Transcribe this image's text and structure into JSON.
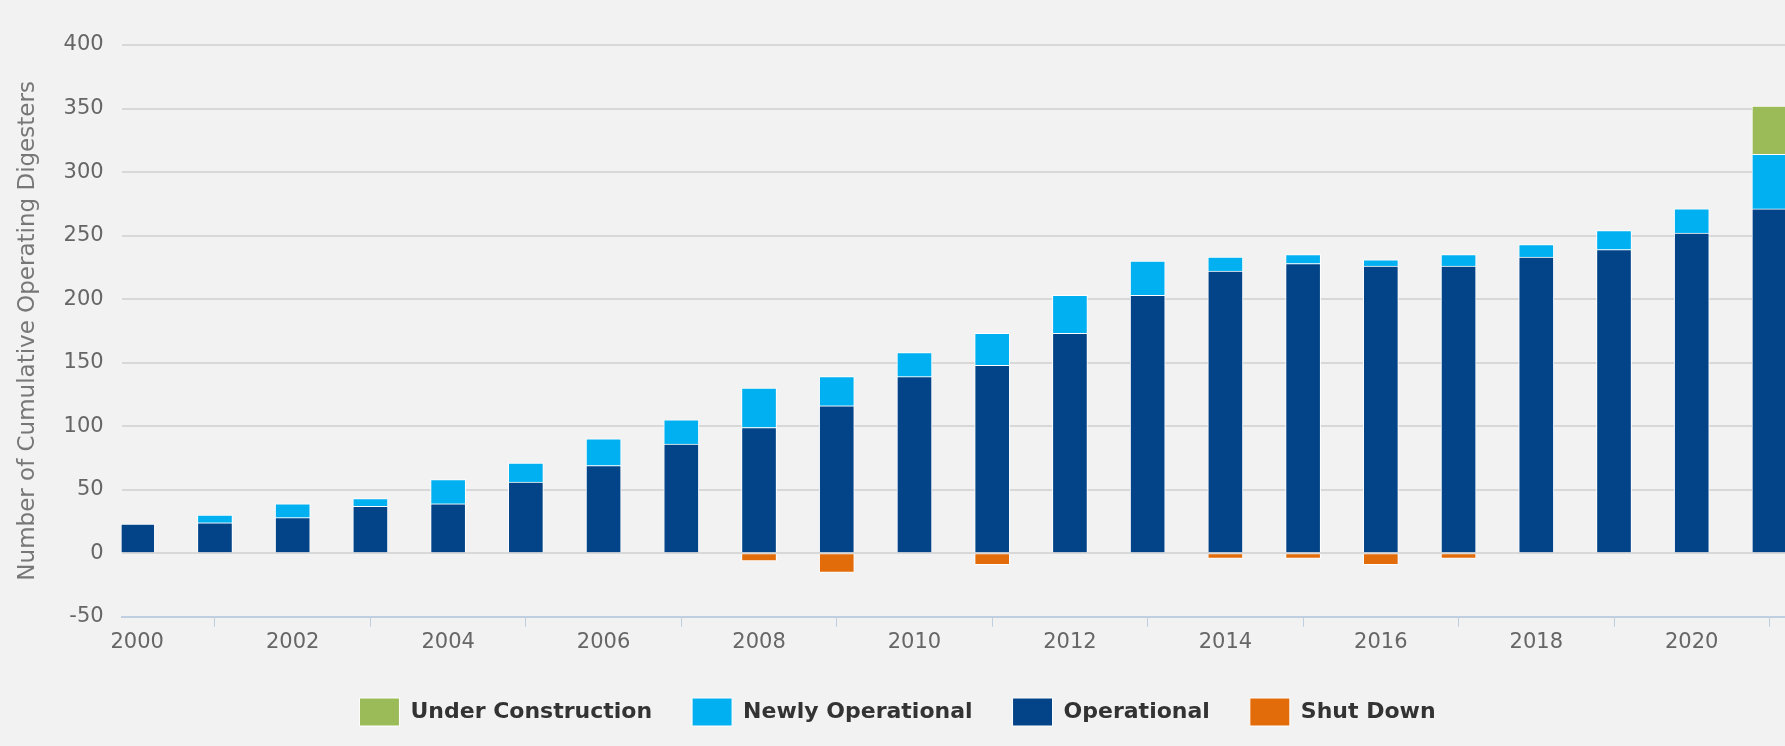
{
  "chart_data": {
    "type": "bar",
    "stacked": true,
    "ylabel": "Number of Cumulative Operating Digesters",
    "x": [
      2000,
      2001,
      2002,
      2003,
      2004,
      2005,
      2006,
      2007,
      2008,
      2009,
      2010,
      2011,
      2012,
      2013,
      2014,
      2015,
      2016,
      2017,
      2018,
      2019,
      2020,
      2021
    ],
    "series": [
      {
        "name": "Operational",
        "color": "#034488",
        "values": [
          23,
          24,
          28,
          37,
          39,
          56,
          69,
          86,
          99,
          116,
          139,
          148,
          173,
          203,
          222,
          228,
          226,
          226,
          233,
          239,
          252,
          271
        ]
      },
      {
        "name": "Newly Operational",
        "color": "#00b0f0",
        "values": [
          null,
          6,
          11,
          6,
          19,
          15,
          21,
          19,
          31,
          23,
          19,
          25,
          30,
          27,
          11,
          7,
          5,
          9,
          10,
          15,
          19,
          43
        ]
      },
      {
        "name": "Under Construction",
        "color": "#9bbb59",
        "values": [
          null,
          null,
          null,
          null,
          null,
          null,
          null,
          null,
          null,
          null,
          null,
          null,
          null,
          null,
          null,
          null,
          null,
          null,
          null,
          null,
          null,
          38
        ]
      },
      {
        "name": "Shut Down",
        "color": "#e36c0a",
        "values": [
          null,
          null,
          null,
          null,
          null,
          null,
          null,
          null,
          -6,
          -15,
          null,
          -9,
          null,
          null,
          -4,
          -4,
          -9,
          -4,
          null,
          null,
          null,
          null
        ]
      }
    ],
    "xlim": [
      1999.8,
      2021.2
    ],
    "xticks": [
      2000,
      2002,
      2004,
      2006,
      2008,
      2010,
      2012,
      2014,
      2016,
      2018,
      2020
    ],
    "ylim": [
      -50,
      400
    ],
    "yticks": [
      -50,
      0,
      50,
      100,
      150,
      200,
      250,
      300,
      350,
      400
    ],
    "grid": "y",
    "legend": "bottom"
  }
}
